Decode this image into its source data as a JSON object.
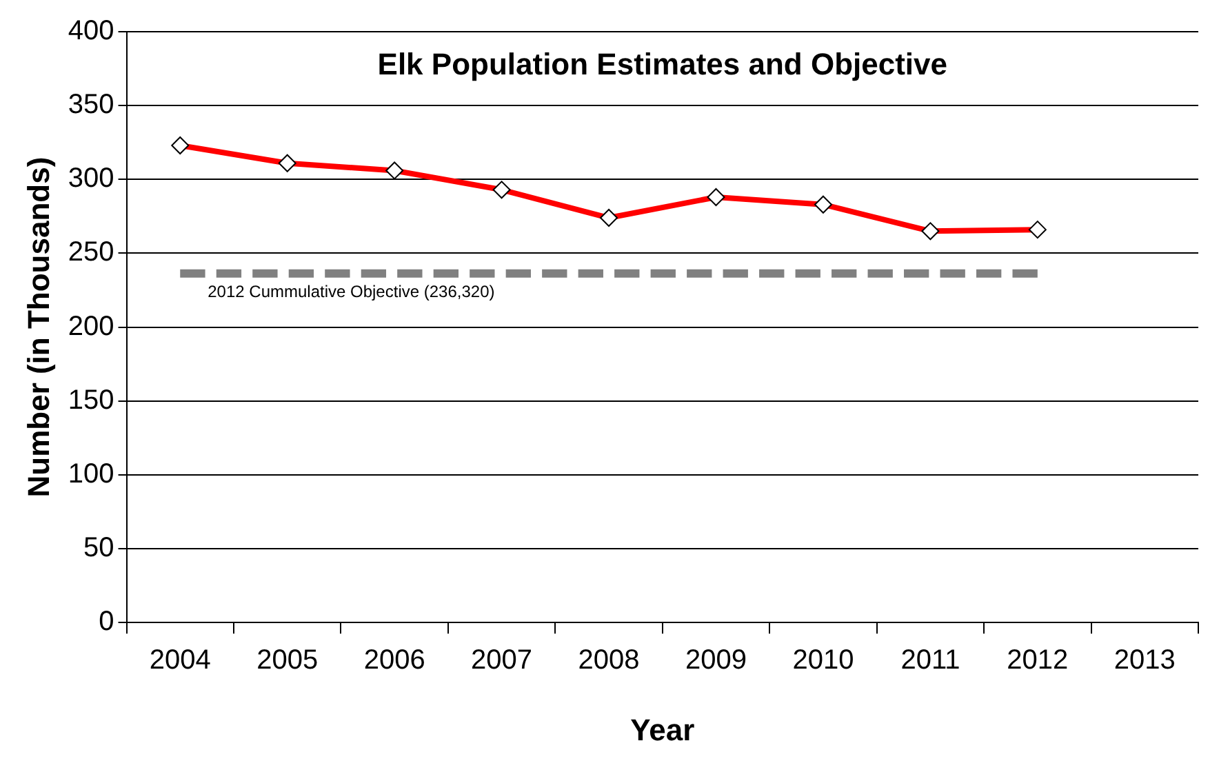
{
  "chart_data": {
    "type": "line",
    "title": "Elk Population Estimates and Objective",
    "xlabel": "Year",
    "ylabel": "Number (in Thousands)",
    "categories": [
      "2004",
      "2005",
      "2006",
      "2007",
      "2008",
      "2009",
      "2010",
      "2011",
      "2012",
      "2013"
    ],
    "series": [
      {
        "color": "#ff0000",
        "values": [
          323,
          311,
          306,
          293,
          274,
          288,
          283,
          265,
          266,
          null
        ],
        "marker": "diamond",
        "line_style": "solid"
      },
      {
        "color": "#808080",
        "values": [
          236.32,
          236.32,
          236.32,
          236.32,
          236.32,
          236.32,
          236.32,
          236.32,
          236.32,
          null
        ],
        "marker": "none",
        "line_style": "dashed"
      }
    ],
    "annotations": [
      {
        "text": "2012 Cummulative Objective (236,320)",
        "x": "2004",
        "y": 236.32
      }
    ],
    "ylim": [
      0,
      400
    ],
    "yticks": [
      0,
      50,
      100,
      150,
      200,
      250,
      300,
      350,
      400
    ],
    "grid": "y",
    "legend": false
  }
}
